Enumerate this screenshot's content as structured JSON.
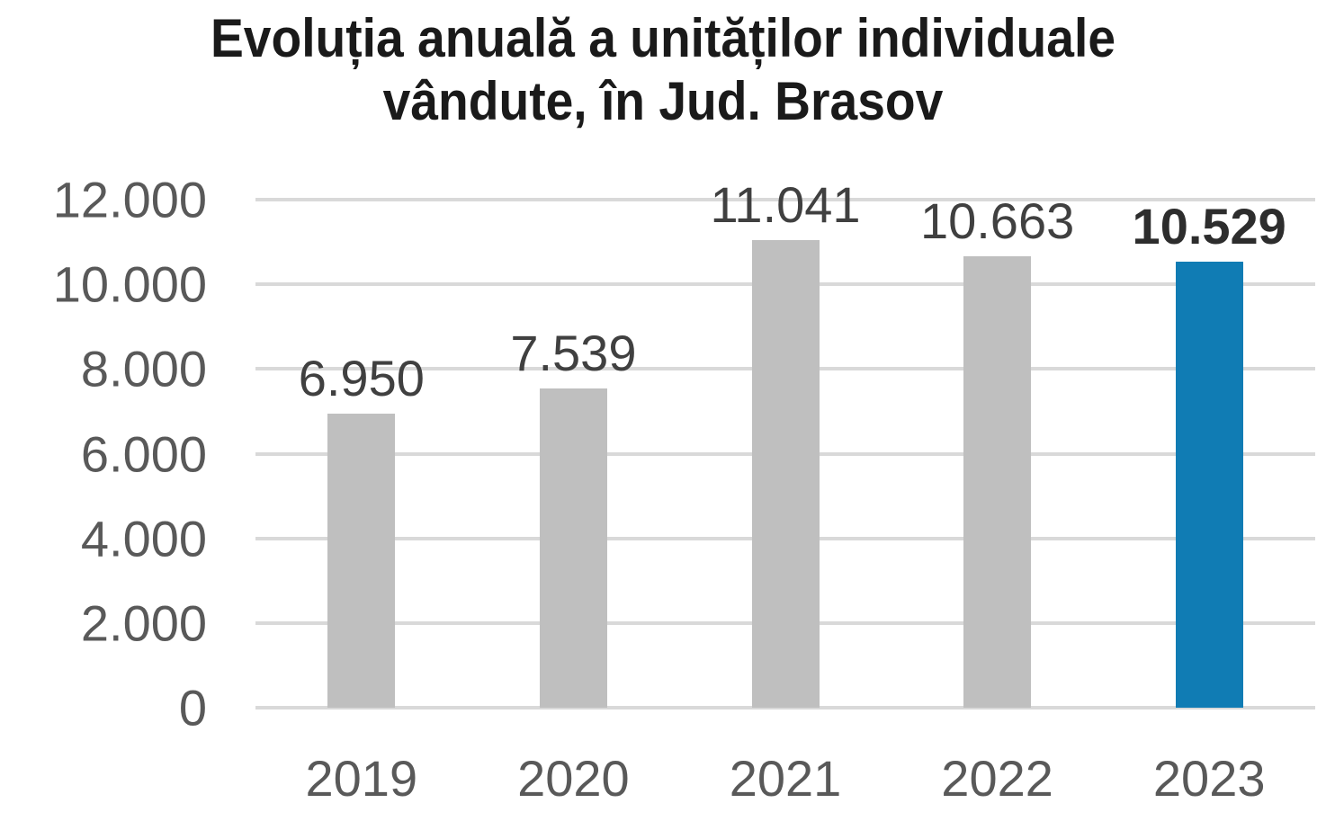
{
  "chart_data": {
    "type": "bar",
    "title": "Evoluția anuală a unităților individuale vândute, în Jud. Brasov",
    "title_lines": [
      "Evoluția anuală a unităților individuale",
      "vândute, în Jud. Brasov"
    ],
    "categories": [
      "2019",
      "2020",
      "2021",
      "2022",
      "2023"
    ],
    "values": [
      6950,
      7539,
      11041,
      10663,
      10529
    ],
    "value_labels": [
      "6.950",
      "7.539",
      "11.041",
      "10.663",
      "10.529"
    ],
    "emphasized_index": 4,
    "xlabel": "",
    "ylabel": "",
    "ylim": [
      0,
      12000
    ],
    "ytick_step": 2000,
    "yticks": [
      {
        "label": "12.000",
        "value": 12000
      },
      {
        "label": "10.000",
        "value": 10000
      },
      {
        "label": "8.000",
        "value": 8000
      },
      {
        "label": "6.000",
        "value": 6000
      },
      {
        "label": "4.000",
        "value": 4000
      },
      {
        "label": "2.000",
        "value": 2000
      },
      {
        "label": "0",
        "value": 0
      }
    ],
    "grid": true,
    "legend": "none",
    "colors": {
      "bar_default": "#bfbfbf",
      "bar_emphasis": "#107cb4",
      "gridline": "#d9d9d9",
      "axis_label": "#595959",
      "value_label": "#404040",
      "value_label_emphasis": "#2d2d2d",
      "title": "#1a1a1a"
    }
  }
}
